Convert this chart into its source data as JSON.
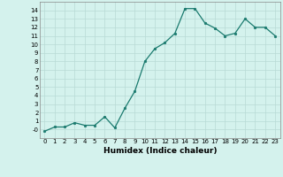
{
  "xlabel": "Humidex (Indice chaleur)",
  "x": [
    0,
    1,
    2,
    3,
    4,
    5,
    6,
    7,
    8,
    9,
    10,
    11,
    12,
    13,
    14,
    15,
    16,
    17,
    18,
    19,
    20,
    21,
    22,
    23
  ],
  "y": [
    -0.2,
    0.3,
    0.3,
    0.8,
    0.5,
    0.5,
    1.5,
    0.2,
    2.5,
    4.5,
    8.0,
    9.5,
    10.2,
    11.3,
    14.2,
    14.2,
    12.5,
    11.9,
    11.0,
    11.3,
    13.0,
    12.0,
    12.0,
    11.0
  ],
  "line_color": "#1a7a6e",
  "marker": "o",
  "marker_size": 1.8,
  "line_width": 0.9,
  "bg_color": "#d4f2ed",
  "grid_color": "#b8dbd6",
  "xlim": [
    -0.5,
    23.5
  ],
  "ylim": [
    -1,
    15
  ],
  "yticks": [
    0,
    1,
    2,
    3,
    4,
    5,
    6,
    7,
    8,
    9,
    10,
    11,
    12,
    13,
    14
  ],
  "ytick_labels": [
    "-0",
    "1",
    "2",
    "3",
    "4",
    "5",
    "6",
    "7",
    "8",
    "9",
    "10",
    "11",
    "12",
    "13",
    "14"
  ],
  "xticks": [
    0,
    1,
    2,
    3,
    4,
    5,
    6,
    7,
    8,
    9,
    10,
    11,
    12,
    13,
    14,
    15,
    16,
    17,
    18,
    19,
    20,
    21,
    22,
    23
  ],
  "xtick_labels": [
    "0",
    "1",
    "2",
    "3",
    "4",
    "5",
    "6",
    "7",
    "8",
    "9",
    "10",
    "11",
    "12",
    "13",
    "14",
    "15",
    "16",
    "17",
    "18",
    "19",
    "20",
    "21",
    "22",
    "23"
  ],
  "xlabel_fontsize": 6.5,
  "tick_fontsize": 5.0
}
